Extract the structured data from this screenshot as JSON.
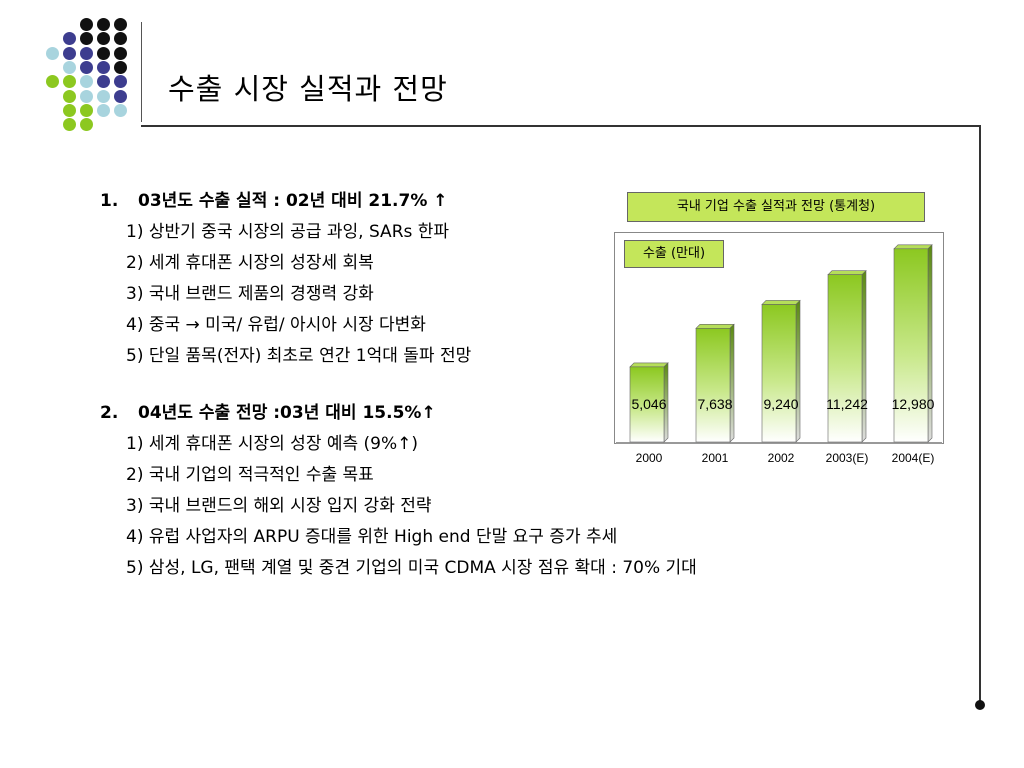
{
  "title": "수출 시장 실적과 전망",
  "sections": [
    {
      "number": "1.",
      "heading": "03년도 수출 실적 : 02년 대비 21.7% ↑",
      "items": [
        "1) 상반기 중국 시장의 공급 과잉, SARs 한파",
        "2) 세계 휴대폰 시장의 성장세 회복",
        "3) 국내 브랜드 제품의 경쟁력 강화",
        "4) 중국 → 미국/ 유럽/ 아시아 시장 다변화",
        "5) 단일 품목(전자) 최초로 연간 1억대 돌파 전망"
      ]
    },
    {
      "number": "2.",
      "heading": "04년도 수출 전망 :03년 대비 15.5%↑",
      "items": [
        "1) 세계 휴대폰 시장의 성장 예측 (9%↑)",
        "2) 국내 기업의 적극적인 수출 목표",
        "3) 국내 브랜드의 해외 시장 입지 강화 전략",
        "4) 유럽 사업자의 ARPU 증대를 위한 High end 단말 요구 증가 추세",
        "5) 삼성, LG, 팬택 계열 및 중견 기업의 미국 CDMA 시장 점유 확대 : 70% 기대"
      ]
    }
  ],
  "colors": {
    "accent_green": "#8cc820",
    "label_green": "#c4e65a",
    "dot_navy": "#3d3d8f",
    "dot_light_blue": "#a8d4de",
    "dot_black": "#111111"
  },
  "chart_data": {
    "type": "bar",
    "title": "국내 기업 수출 실적과 전망 (통계청)",
    "series_label": "수출 (만대)",
    "categories": [
      "2000",
      "2001",
      "2002",
      "2003(E)",
      "2004(E)"
    ],
    "values": [
      5046,
      7638,
      9240,
      11242,
      12980
    ],
    "value_labels": [
      "5,046",
      "7,638",
      "9,240",
      "11,242",
      "12,980"
    ]
  }
}
